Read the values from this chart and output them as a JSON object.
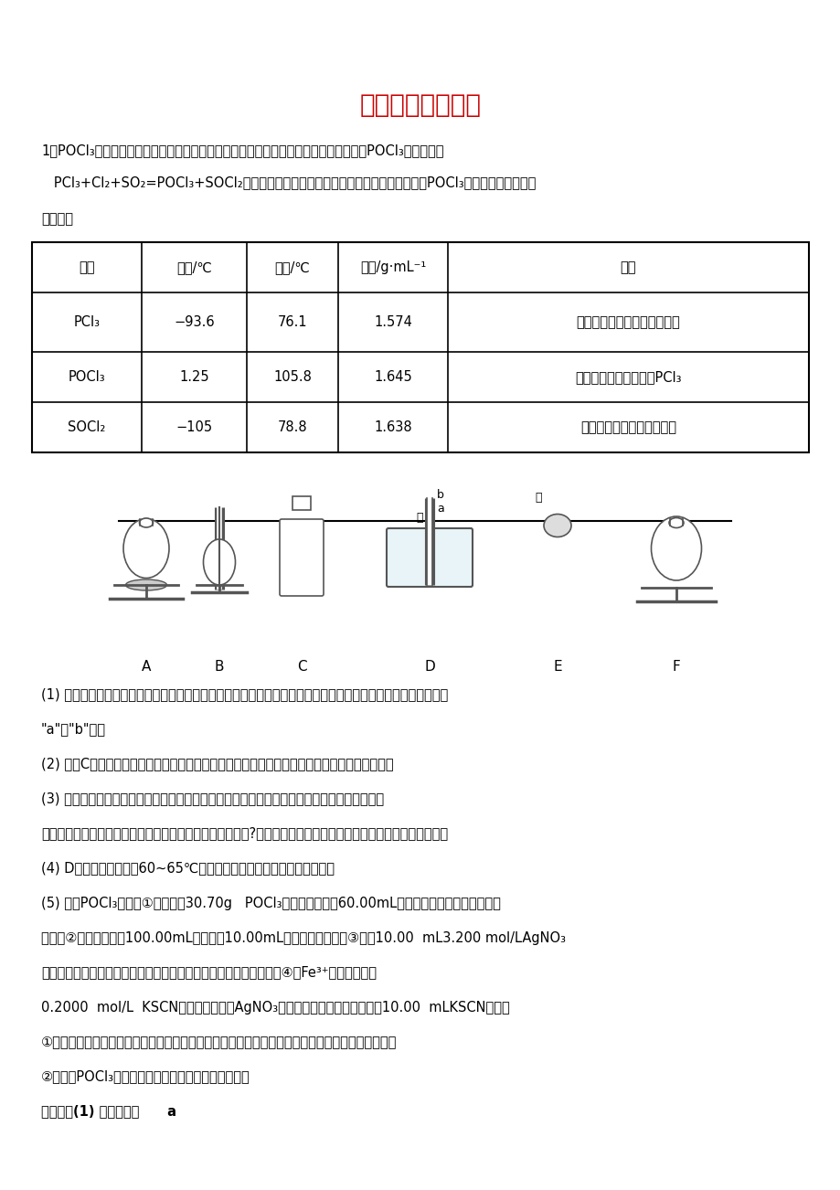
{
  "title": "无机化工流程分析",
  "title_color": "#cc0000",
  "bg_color": "#ffffff",
  "text_color": "#000000",
  "para1": "1．POCl₃是重要的基础化工原料，广泛用于制药、染料、表面活性剂等行业。一种制备POCl₃的原理为：",
  "para2": "   PCl₃+Cl₂+SO₂=POCl₃+SOCl₂。某化学学习小组拟利用如下装置在实验室模拟制备POCl₃。有关物质的部分性",
  "para3": "质如下：",
  "table_headers": [
    "物质",
    "熔点/℃",
    "沸点/℃",
    "密度/g·mL⁻¹",
    "其它"
  ],
  "table_rows": [
    [
      "PCl₃",
      "−93.6",
      "76.1",
      "1.574",
      "遇水强烈水解，易与氧气反应"
    ],
    [
      "POCl₃",
      "1.25",
      "105.8",
      "1.645",
      "遇水强烈水解，能溶于PCl₃"
    ],
    [
      "SOCl₂",
      "−105",
      "78.8",
      "1.638",
      "遇水强烈水解，加热易分解"
    ]
  ],
  "apparatus_labels": [
    "A",
    "B",
    "C",
    "D",
    "E",
    "F"
  ],
  "questions": [
    "(1) 仪器甲的名称为＿＿＿＿＿＿＿＿＿＿＿，与自来水进水管连接的接口编号是＿＿＿＿＿＿＿＿＿＿＿。（填",
    "\"a\"或\"b\"）。",
    "(2) 装置C的作用是＿＿＿＿＿＿＿＿＿＿，乙中试剂的名称为＿＿＿＿＿＿＿＿＿＿＿＿＿＿。",
    "(3) 该装置有一处缺陷，解决的方法是在现有装置中再添加一个装置，该装置中应装入的试剂为",
    "＿＿＿＿＿（写名称）。若无该装置，则可能会有什么后果?请用化学方程式进行说明＿＿＿＿＿＿＿＿＿＿＿＿。",
    "(4) D中反应温度控制在60~65℃，其原因是＿＿＿＿＿＿＿＿＿＿＿。",
    "(5) 测定POCl₃含量。①准确称取30.70g   POCl₃产品，置于盛有60.00mL蒸馏水的水解瓶中摇动至完全",
    "水解；②将水解液配成100.00mL溶液，取10.00mL溶液于锥形瓶中；③加入10.00  mL3.200 mol/LAgNO₃",
    "标准溶液，并加入少许硝基苯用力摇动，使沉淀表面被有机物覆盖；④以Fe³⁺为指示剂，用",
    "0.2000  mol/L  KSCN溶液滴定过量的AgNO₃溶液，达到滴定终点时共用去10.00  mLKSCN溶液。",
    "①滴定终点的现象为＿＿＿＿＿＿＿＿＿＿＿，用硝基苯覆盖沉淀的目的是＿＿＿＿＿＿＿＿＿＿。",
    "②反应中POCl₃的百分含量为＿＿＿＿＿＿＿＿＿＿。",
    "【答案】(1) 球形冷凝管      a"
  ]
}
